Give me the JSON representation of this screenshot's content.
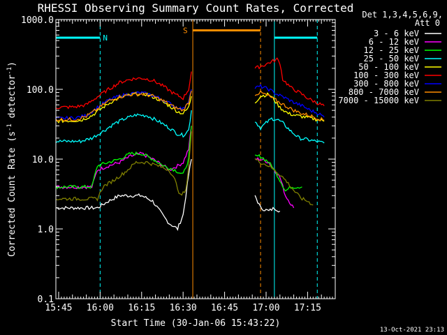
{
  "chart_data": {
    "type": "line",
    "title": "RHESSI Observing Summary Count Rates, Corrected",
    "xlabel": "Start Time (30-Jan-06 15:43:22)",
    "ylabel_main": "Corrected Count Rate (s",
    "ylabel_sup1": "-1",
    "ylabel_mid": " detector",
    "ylabel_sup2": "-1",
    "ylabel_end": ")",
    "y_scale": "log",
    "ylim": [
      0.1,
      1000
    ],
    "xlim_minutes": [
      -1,
      100
    ],
    "x_ticks": [
      {
        "t": 0,
        "label": "15:45"
      },
      {
        "t": 15,
        "label": "16:00"
      },
      {
        "t": 30,
        "label": "16:15"
      },
      {
        "t": 45,
        "label": "16:30"
      },
      {
        "t": 60,
        "label": "16:45"
      },
      {
        "t": 75,
        "label": "17:00"
      },
      {
        "t": 90,
        "label": "17:15"
      }
    ],
    "y_ticks": [
      {
        "v": 0.1,
        "label": "0.1"
      },
      {
        "v": 1,
        "label": "1.0"
      },
      {
        "v": 10,
        "label": "10.0"
      },
      {
        "v": 100,
        "label": "100.0"
      },
      {
        "v": 1000,
        "label": "1000.0"
      }
    ],
    "legend": {
      "header1": "Det 1,3,4,5,6,9,",
      "header2": "Att 0",
      "placement": "right"
    },
    "series": [
      {
        "name": "3 - 6 keV",
        "color": "#ffffff",
        "seg1": [
          [
            -1,
            2
          ],
          [
            14,
            2
          ],
          [
            18,
            2.5
          ],
          [
            22,
            3
          ],
          [
            26,
            3
          ],
          [
            30,
            3
          ],
          [
            34,
            2.5
          ],
          [
            38,
            1.5
          ],
          [
            40,
            1.2
          ],
          [
            43,
            1
          ],
          [
            45,
            1.6
          ],
          [
            46,
            3
          ],
          [
            47,
            6
          ],
          [
            48,
            10
          ]
        ],
        "seg2": [
          [
            71,
            3
          ],
          [
            73,
            2
          ],
          [
            76,
            1.8
          ],
          [
            78,
            2
          ],
          [
            80,
            1.8
          ]
        ]
      },
      {
        "name": "6 - 12 keV",
        "color": "#ff00ff",
        "seg1": [
          [
            -1,
            4
          ],
          [
            12,
            4
          ],
          [
            14,
            7
          ],
          [
            18,
            8
          ],
          [
            22,
            9
          ],
          [
            26,
            11
          ],
          [
            30,
            12
          ],
          [
            34,
            10
          ],
          [
            38,
            8
          ],
          [
            40,
            7
          ],
          [
            43,
            8
          ],
          [
            45,
            9
          ],
          [
            47,
            14
          ],
          [
            48,
            30
          ]
        ],
        "seg2": [
          [
            71,
            10
          ],
          [
            73,
            10
          ],
          [
            76,
            9
          ],
          [
            78,
            7
          ],
          [
            80,
            5.5
          ],
          [
            82,
            3
          ],
          [
            85,
            2
          ]
        ]
      },
      {
        "name": "12 - 25 keV",
        "color": "#00ff00",
        "seg1": [
          [
            -1,
            4
          ],
          [
            12,
            4
          ],
          [
            14,
            8
          ],
          [
            18,
            9
          ],
          [
            22,
            10
          ],
          [
            26,
            12
          ],
          [
            30,
            12
          ],
          [
            34,
            10
          ],
          [
            38,
            8
          ],
          [
            42,
            7
          ],
          [
            45,
            6
          ],
          [
            47,
            10
          ],
          [
            48,
            30
          ]
        ],
        "seg2": [
          [
            71,
            11
          ],
          [
            73,
            11
          ],
          [
            76,
            9
          ],
          [
            78,
            7
          ],
          [
            80,
            5
          ],
          [
            82,
            3.5
          ],
          [
            84,
            4
          ],
          [
            86,
            4
          ],
          [
            88,
            4
          ]
        ]
      },
      {
        "name": "25 - 50 keV",
        "color": "#00ffff",
        "seg1": [
          [
            -1,
            18
          ],
          [
            8,
            18
          ],
          [
            12,
            20
          ],
          [
            16,
            25
          ],
          [
            20,
            32
          ],
          [
            24,
            38
          ],
          [
            28,
            43
          ],
          [
            32,
            42
          ],
          [
            36,
            35
          ],
          [
            40,
            28
          ],
          [
            43,
            23
          ],
          [
            45,
            22
          ],
          [
            47,
            26
          ],
          [
            48,
            50
          ]
        ],
        "seg2": [
          [
            71,
            35
          ],
          [
            73,
            28
          ],
          [
            75,
            33
          ],
          [
            77,
            38
          ],
          [
            79,
            37
          ],
          [
            81,
            33
          ],
          [
            84,
            25
          ],
          [
            87,
            20
          ],
          [
            90,
            19
          ],
          [
            93,
            18
          ],
          [
            96,
            17
          ]
        ]
      },
      {
        "name": "50 - 100 keV",
        "color": "#ffff00",
        "seg1": [
          [
            -1,
            35
          ],
          [
            8,
            36
          ],
          [
            12,
            42
          ],
          [
            16,
            55
          ],
          [
            20,
            70
          ],
          [
            24,
            80
          ],
          [
            28,
            86
          ],
          [
            32,
            85
          ],
          [
            36,
            72
          ],
          [
            40,
            58
          ],
          [
            43,
            48
          ],
          [
            45,
            45
          ],
          [
            47,
            55
          ],
          [
            48,
            80
          ]
        ],
        "seg2": [
          [
            71,
            65
          ],
          [
            73,
            80
          ],
          [
            76,
            85
          ],
          [
            78,
            70
          ],
          [
            80,
            55
          ],
          [
            83,
            45
          ],
          [
            86,
            42
          ],
          [
            89,
            40
          ],
          [
            92,
            38
          ],
          [
            96,
            35
          ]
        ]
      },
      {
        "name": "100 - 300 keV",
        "color": "#ff0000",
        "seg1": [
          [
            -1,
            55
          ],
          [
            6,
            56
          ],
          [
            10,
            60
          ],
          [
            14,
            78
          ],
          [
            18,
            100
          ],
          [
            22,
            125
          ],
          [
            26,
            140
          ],
          [
            30,
            145
          ],
          [
            34,
            135
          ],
          [
            38,
            110
          ],
          [
            42,
            85
          ],
          [
            45,
            75
          ],
          [
            47,
            100
          ],
          [
            48,
            180
          ]
        ],
        "seg2": [
          [
            71,
            200
          ],
          [
            74,
            220
          ],
          [
            77,
            250
          ],
          [
            79,
            270
          ],
          [
            80,
            240
          ],
          [
            81,
            140
          ],
          [
            84,
            105
          ],
          [
            87,
            90
          ],
          [
            90,
            75
          ],
          [
            93,
            65
          ],
          [
            96,
            58
          ]
        ]
      },
      {
        "name": "300 - 800 keV",
        "color": "#0000ff",
        "seg1": [
          [
            -1,
            38
          ],
          [
            6,
            39
          ],
          [
            10,
            42
          ],
          [
            14,
            55
          ],
          [
            18,
            70
          ],
          [
            22,
            80
          ],
          [
            26,
            87
          ],
          [
            30,
            89
          ],
          [
            34,
            82
          ],
          [
            38,
            70
          ],
          [
            42,
            57
          ],
          [
            45,
            52
          ],
          [
            47,
            70
          ],
          [
            48,
            100
          ]
        ],
        "seg2": [
          [
            71,
            105
          ],
          [
            73,
            110
          ],
          [
            76,
            100
          ],
          [
            79,
            85
          ],
          [
            82,
            75
          ],
          [
            85,
            65
          ],
          [
            88,
            58
          ],
          [
            91,
            50
          ],
          [
            94,
            45
          ],
          [
            96,
            40
          ]
        ]
      },
      {
        "name": "800 - 7000 keV",
        "color": "#ff8c00",
        "seg1": [
          [
            -1,
            37
          ],
          [
            6,
            37
          ],
          [
            10,
            41
          ],
          [
            14,
            52
          ],
          [
            18,
            68
          ],
          [
            22,
            78
          ],
          [
            26,
            84
          ],
          [
            30,
            86
          ],
          [
            34,
            80
          ],
          [
            38,
            68
          ],
          [
            42,
            55
          ],
          [
            45,
            50
          ],
          [
            47,
            65
          ],
          [
            48,
            95
          ]
        ],
        "seg2": [
          [
            71,
            85
          ],
          [
            73,
            90
          ],
          [
            76,
            80
          ],
          [
            79,
            68
          ],
          [
            82,
            58
          ],
          [
            85,
            50
          ],
          [
            88,
            45
          ],
          [
            91,
            42
          ],
          [
            94,
            38
          ],
          [
            96,
            36
          ]
        ]
      },
      {
        "name": "7000 - 15000 keV",
        "color": "#808000",
        "seg1": [
          [
            -1,
            2.7
          ],
          [
            14,
            2.7
          ],
          [
            16,
            4
          ],
          [
            20,
            5
          ],
          [
            24,
            6.5
          ],
          [
            28,
            9
          ],
          [
            32,
            9
          ],
          [
            36,
            8
          ],
          [
            40,
            7
          ],
          [
            42,
            5
          ],
          [
            44,
            3
          ],
          [
            46,
            3.5
          ],
          [
            47,
            8
          ],
          [
            48,
            25
          ]
        ],
        "seg2": [
          [
            71,
            10
          ],
          [
            73,
            9
          ],
          [
            76,
            8
          ],
          [
            78,
            7
          ],
          [
            80,
            6
          ],
          [
            82,
            5
          ],
          [
            84,
            4
          ],
          [
            86,
            3.2
          ],
          [
            88,
            2.7
          ],
          [
            90,
            2.5
          ],
          [
            92,
            2.2
          ]
        ]
      }
    ],
    "markers": [
      {
        "kind": "vline",
        "t": -1,
        "color": "#00ffff",
        "style": "solid"
      },
      {
        "kind": "vline",
        "t": 15,
        "color": "#00ffff",
        "style": "dashed"
      },
      {
        "kind": "hbar",
        "t0": -1,
        "t1": 15,
        "v": 550,
        "color": "#00ffff",
        "label": "N"
      },
      {
        "kind": "vline",
        "t": 48.5,
        "color": "#ff8c00",
        "style": "solid"
      },
      {
        "kind": "vline",
        "t": 73,
        "color": "#ff8c00",
        "style": "dashed"
      },
      {
        "kind": "hbar",
        "t0": 48.5,
        "t1": 73,
        "v": 700,
        "color": "#ff8c00",
        "label": "S"
      },
      {
        "kind": "vline",
        "t": 78,
        "color": "#00ffff",
        "style": "solid"
      },
      {
        "kind": "vline",
        "t": 93.5,
        "color": "#00ffff",
        "style": "dashed"
      },
      {
        "kind": "hbar",
        "t0": 78,
        "t1": 93.5,
        "v": 550,
        "color": "#00ffff",
        "label": ""
      }
    ]
  },
  "footer": {
    "timestamp": "13-Oct-2021 23:13"
  }
}
